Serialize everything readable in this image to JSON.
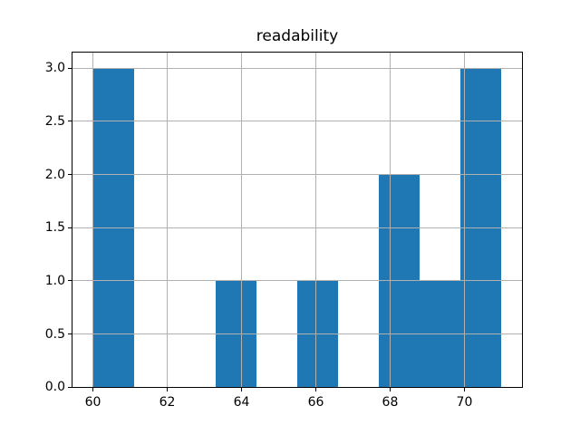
{
  "figure": {
    "background": "#ffffff"
  },
  "chart_data": {
    "type": "histogram",
    "title": "readability",
    "xlabel": "",
    "ylabel": "",
    "bin_edges": [
      60.0,
      61.1,
      62.2,
      63.3,
      64.4,
      65.5,
      66.6,
      67.7,
      68.8,
      69.9,
      71.0
    ],
    "counts": [
      3,
      0,
      0,
      1,
      0,
      1,
      0,
      2,
      1,
      3
    ],
    "xlim": [
      59.45,
      71.55
    ],
    "ylim": [
      0.0,
      3.15
    ],
    "xticks": {
      "values": [
        60,
        62,
        64,
        66,
        68,
        70
      ],
      "labels": [
        "60",
        "62",
        "64",
        "66",
        "68",
        "70"
      ]
    },
    "yticks": {
      "values": [
        0.0,
        0.5,
        1.0,
        1.5,
        2.0,
        2.5,
        3.0
      ],
      "labels": [
        "0.0",
        "0.5",
        "1.0",
        "1.5",
        "2.0",
        "2.5",
        "3.0"
      ]
    },
    "grid": true,
    "legend_position": "none"
  },
  "colors": {
    "bar": "#1f77b4",
    "grid": "#b0b0b0",
    "spine": "#000000",
    "text": "#000000",
    "background": "#ffffff"
  }
}
